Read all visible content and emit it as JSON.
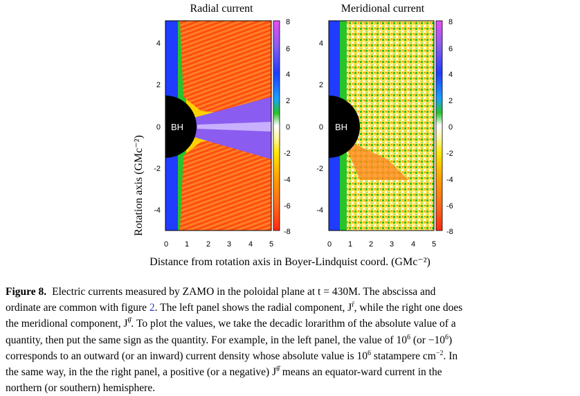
{
  "panels": {
    "left_title": "Radial current",
    "right_title": "Meridional current",
    "bh_label": "BH"
  },
  "axes": {
    "ylabel": "Rotation axis (GMc⁻²)",
    "xlabel": "Distance from rotation axis in Boyer-Lindquist coord. (GMc⁻²)",
    "x_ticks": [
      "0",
      "1",
      "2",
      "3",
      "4",
      "5"
    ],
    "y_ticks": [
      "4",
      "2",
      "0",
      "-2",
      "-4"
    ],
    "cb_ticks": [
      "8",
      "6",
      "4",
      "2",
      "0",
      "-2",
      "-4",
      "-6",
      "-8"
    ]
  },
  "caption": {
    "label": "Figure 8.",
    "line1": "Electric currents measured by ZAMO in the poloidal plane at t = 430M. The abscissa and",
    "line2a": "ordinate are common with figure ",
    "line2ref": "2",
    "line2b": ". The left panel shows the radial component, J",
    "line2c": ", while the right one does",
    "line3a": "the meridional component, J",
    "line3b": ". To plot the values, we take the decadic lorarithm of the absolute value of a",
    "line4": "quantity, then put the same sign as the quantity. For example, in the left panel, the value of 10",
    "line4b": " (or −10",
    "line4c": ")",
    "line5a": "corresponds to an outward (or an inward) current density whose absolute value is 10",
    "line5b": " statampere cm",
    "line5c": ". In",
    "line6a": "the same way, in the the right panel, a positive (or a negative) J",
    "line6b": " means an equator-ward current in the",
    "line7": "northern (or southern) hemisphere.",
    "sup6": "6",
    "sup_neg2": "−2",
    "sup_r": "r̂",
    "sup_theta": "θ̂"
  },
  "colors": {
    "bh": "#000000",
    "orange": "#ff6a1a",
    "red": "#ff3a10",
    "yellow": "#ffe800",
    "green": "#27c42a",
    "blue": "#1f3cff",
    "purple": "#8a5cf0",
    "violet": "#e04cf0"
  }
}
